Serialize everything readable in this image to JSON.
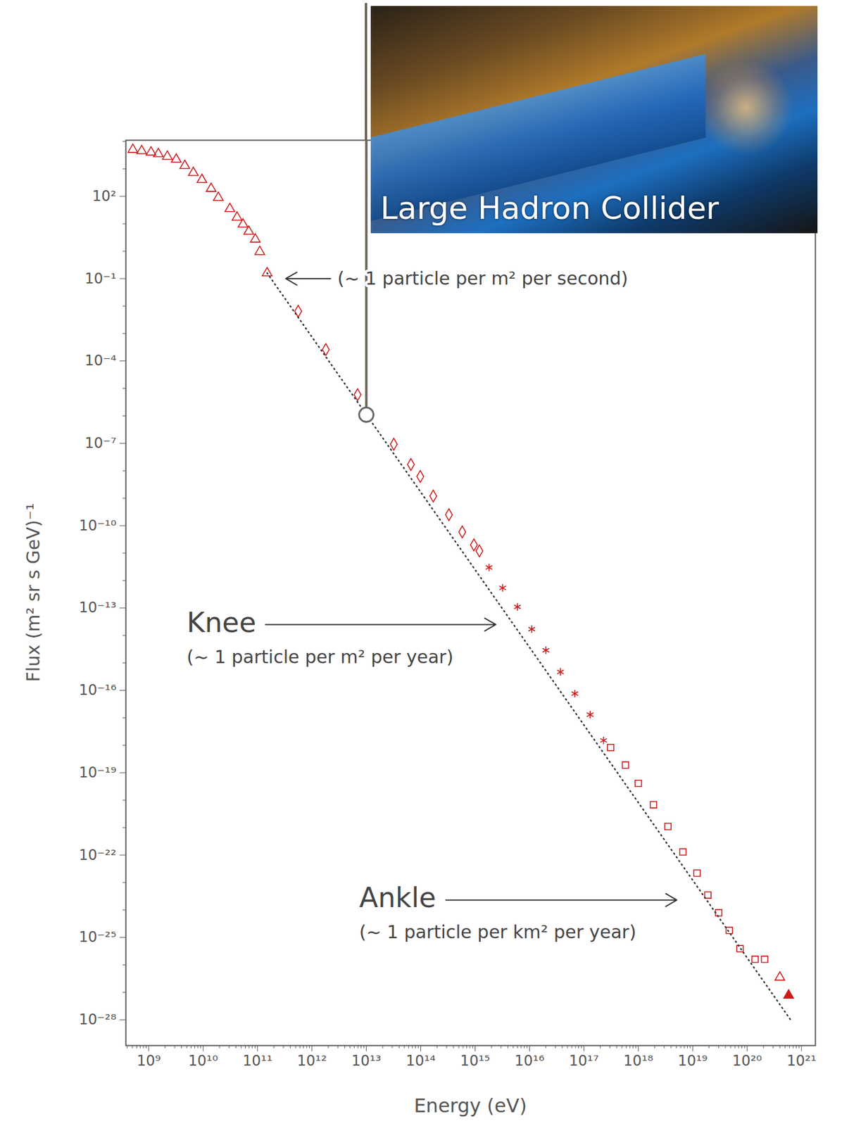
{
  "chart_data": {
    "type": "scatter",
    "x_label": "Energy (eV)",
    "y_label": "Flux (m² sr s GeV)⁻¹",
    "log": true,
    "grid": false,
    "xlim": [
      380000000.0,
      1.8e+21
    ],
    "ylim": [
      1.15e-29,
      11000.0
    ],
    "xticks": [
      {
        "value": 1000000000.0,
        "label": "10⁹"
      },
      {
        "value": 10000000000.0,
        "label": "10¹⁰"
      },
      {
        "value": 100000000000.0,
        "label": "10¹¹"
      },
      {
        "value": 1000000000000.0,
        "label": "10¹²"
      },
      {
        "value": 10000000000000.0,
        "label": "10¹³"
      },
      {
        "value": 100000000000000.0,
        "label": "10¹⁴"
      },
      {
        "value": 1000000000000000.0,
        "label": "10¹⁵"
      },
      {
        "value": 1e+16,
        "label": "10¹⁶"
      },
      {
        "value": 1e+17,
        "label": "10¹⁷"
      },
      {
        "value": 1e+18,
        "label": "10¹⁸"
      },
      {
        "value": 1e+19,
        "label": "10¹⁹"
      },
      {
        "value": 1e+20,
        "label": "10²⁰"
      },
      {
        "value": 1e+21,
        "label": "10²¹"
      }
    ],
    "yticks": [
      {
        "value": 100,
        "label": "10²"
      },
      {
        "value": 0.1,
        "label": "10⁻¹"
      },
      {
        "value": 0.0001,
        "label": "10⁻⁴"
      },
      {
        "value": 1e-07,
        "label": "10⁻⁷"
      },
      {
        "value": 1e-10,
        "label": "10⁻¹⁰"
      },
      {
        "value": 1e-13,
        "label": "10⁻¹³"
      },
      {
        "value": 1e-16,
        "label": "10⁻¹⁶"
      },
      {
        "value": 1e-19,
        "label": "10⁻¹⁹"
      },
      {
        "value": 1e-22,
        "label": "10⁻²²"
      },
      {
        "value": 1e-25,
        "label": "10⁻²⁵"
      },
      {
        "value": 1e-28,
        "label": "10⁻²⁸"
      }
    ],
    "series": [
      {
        "marker": "triangle-open",
        "color": "#cc1a1a",
        "x": [
          510000000.0,
          740000000.0,
          1100000000.0,
          1500000000.0,
          2200000000.0,
          3200000000.0,
          4600000000.0,
          6600000000.0,
          9500000000.0,
          14000000000.0,
          19000000000.0,
          31000000000.0,
          42000000000.0,
          54000000000.0,
          69000000000.0,
          91000000000.0,
          110000000000.0,
          150000000000.0
        ],
        "values": [
          5000.0,
          4500.0,
          4000.0,
          3500.0,
          2800.0,
          2200.0,
          1300.0,
          720,
          400,
          190,
          89,
          35,
          17,
          9.5,
          5.2,
          2.7,
          0.95,
          0.16
        ]
      },
      {
        "marker": "diamond-open",
        "color": "#cc1a1a",
        "x": [
          560000000000.0,
          1800000000000.0,
          6900000000000.0,
          32000000000000.0,
          66000000000000.0,
          98000000000000.0,
          170000000000000.0,
          330000000000000.0,
          580000000000000.0,
          950000000000000.0,
          1200000000000000.0
        ],
        "values": [
          0.0065,
          0.00026,
          5.9e-06,
          9.3e-08,
          1.7e-08,
          6.2e-09,
          1.2e-09,
          2.5e-10,
          5.9e-11,
          2e-11,
          1.2e-11
        ]
      },
      {
        "marker": "asterisk-filled",
        "color": "#cc1a1a",
        "x": [
          1800000000000000.0,
          3200000000000000.0,
          6000000000000000.0,
          1.1e+16,
          2e+16,
          3.7e+16,
          6.8e+16,
          1.3e+17,
          2.3e+17
        ],
        "values": [
          3e-12,
          5.4e-13,
          1.1e-13,
          1.7e-14,
          2.9e-15,
          4.7e-16,
          7.6e-17,
          1.3e-17,
          1.5e-18
        ]
      },
      {
        "marker": "square-open",
        "color": "#cc1a1a",
        "x": [
          3.1e+17,
          5.8e+17,
          1e+18,
          1.9e+18,
          3.5e+18,
          6.6e+18,
          1.2e+19,
          1.9e+19,
          3e+19,
          4.7e+19,
          7.4e+19,
          1.4e+20,
          2.1e+20
        ],
        "values": [
          8.3e-19,
          1.9e-19,
          4.1e-20,
          6.8e-21,
          1.1e-21,
          1.3e-22,
          2.2e-23,
          3.5e-24,
          7.9e-25,
          1.8e-25,
          3.9e-26,
          1.6e-26,
          1.6e-26
        ]
      },
      {
        "marker": "triangle-open",
        "color": "#cc1a1a",
        "x": [
          4e+20
        ],
        "values": [
          3.5e-27
        ]
      },
      {
        "marker": "triangle-filled",
        "color": "#cc1a1a",
        "x": [
          5.8e+20
        ],
        "values": [
          7.8e-28
        ]
      },
      {
        "type": "line",
        "line_style": "dotted",
        "color": "#333333",
        "x": [
          150000000000.0,
          6.3e+20
        ],
        "values": [
          0.16,
          1e-28
        ]
      }
    ],
    "highlight": {
      "label": "Large Hadron Collider",
      "x": 10000000000000.0,
      "y": 1.1e-06,
      "marker": "circle-open",
      "color": "#666666"
    },
    "annotations": [
      {
        "text": "(~ 1 particle per m² per second)",
        "x": 2950000000000.0,
        "y": 0.1,
        "arrow_from": {
          "x": 2200000000000.0,
          "y": 0.1
        },
        "arrow_to": {
          "x": 330000000000.0,
          "y": 0.1
        }
      },
      {
        "text": "Knee",
        "x": 5000000000.0,
        "y": 2.8e-14,
        "arrow_from": {
          "x": 140000000000.0,
          "y": 2.5e-14
        },
        "arrow_to": {
          "x": 2400000000000000.0,
          "y": 2.5e-14
        }
      },
      {
        "text": "(~ 1 particle per m² per year)",
        "x": 5000000000.0,
        "y": 1.55e-15
      },
      {
        "text": "Ankle",
        "x": 7400000000000.0,
        "y": 2.6e-24,
        "arrow_from": {
          "x": 290000000000000.0,
          "y": 2.3e-24
        },
        "arrow_to": {
          "x": 5.1e+18,
          "y": 2.3e-24
        }
      },
      {
        "text": "(~ 1 particle per km² per year)",
        "x": 7400000000000.0,
        "y": 1.5e-25
      }
    ]
  }
}
